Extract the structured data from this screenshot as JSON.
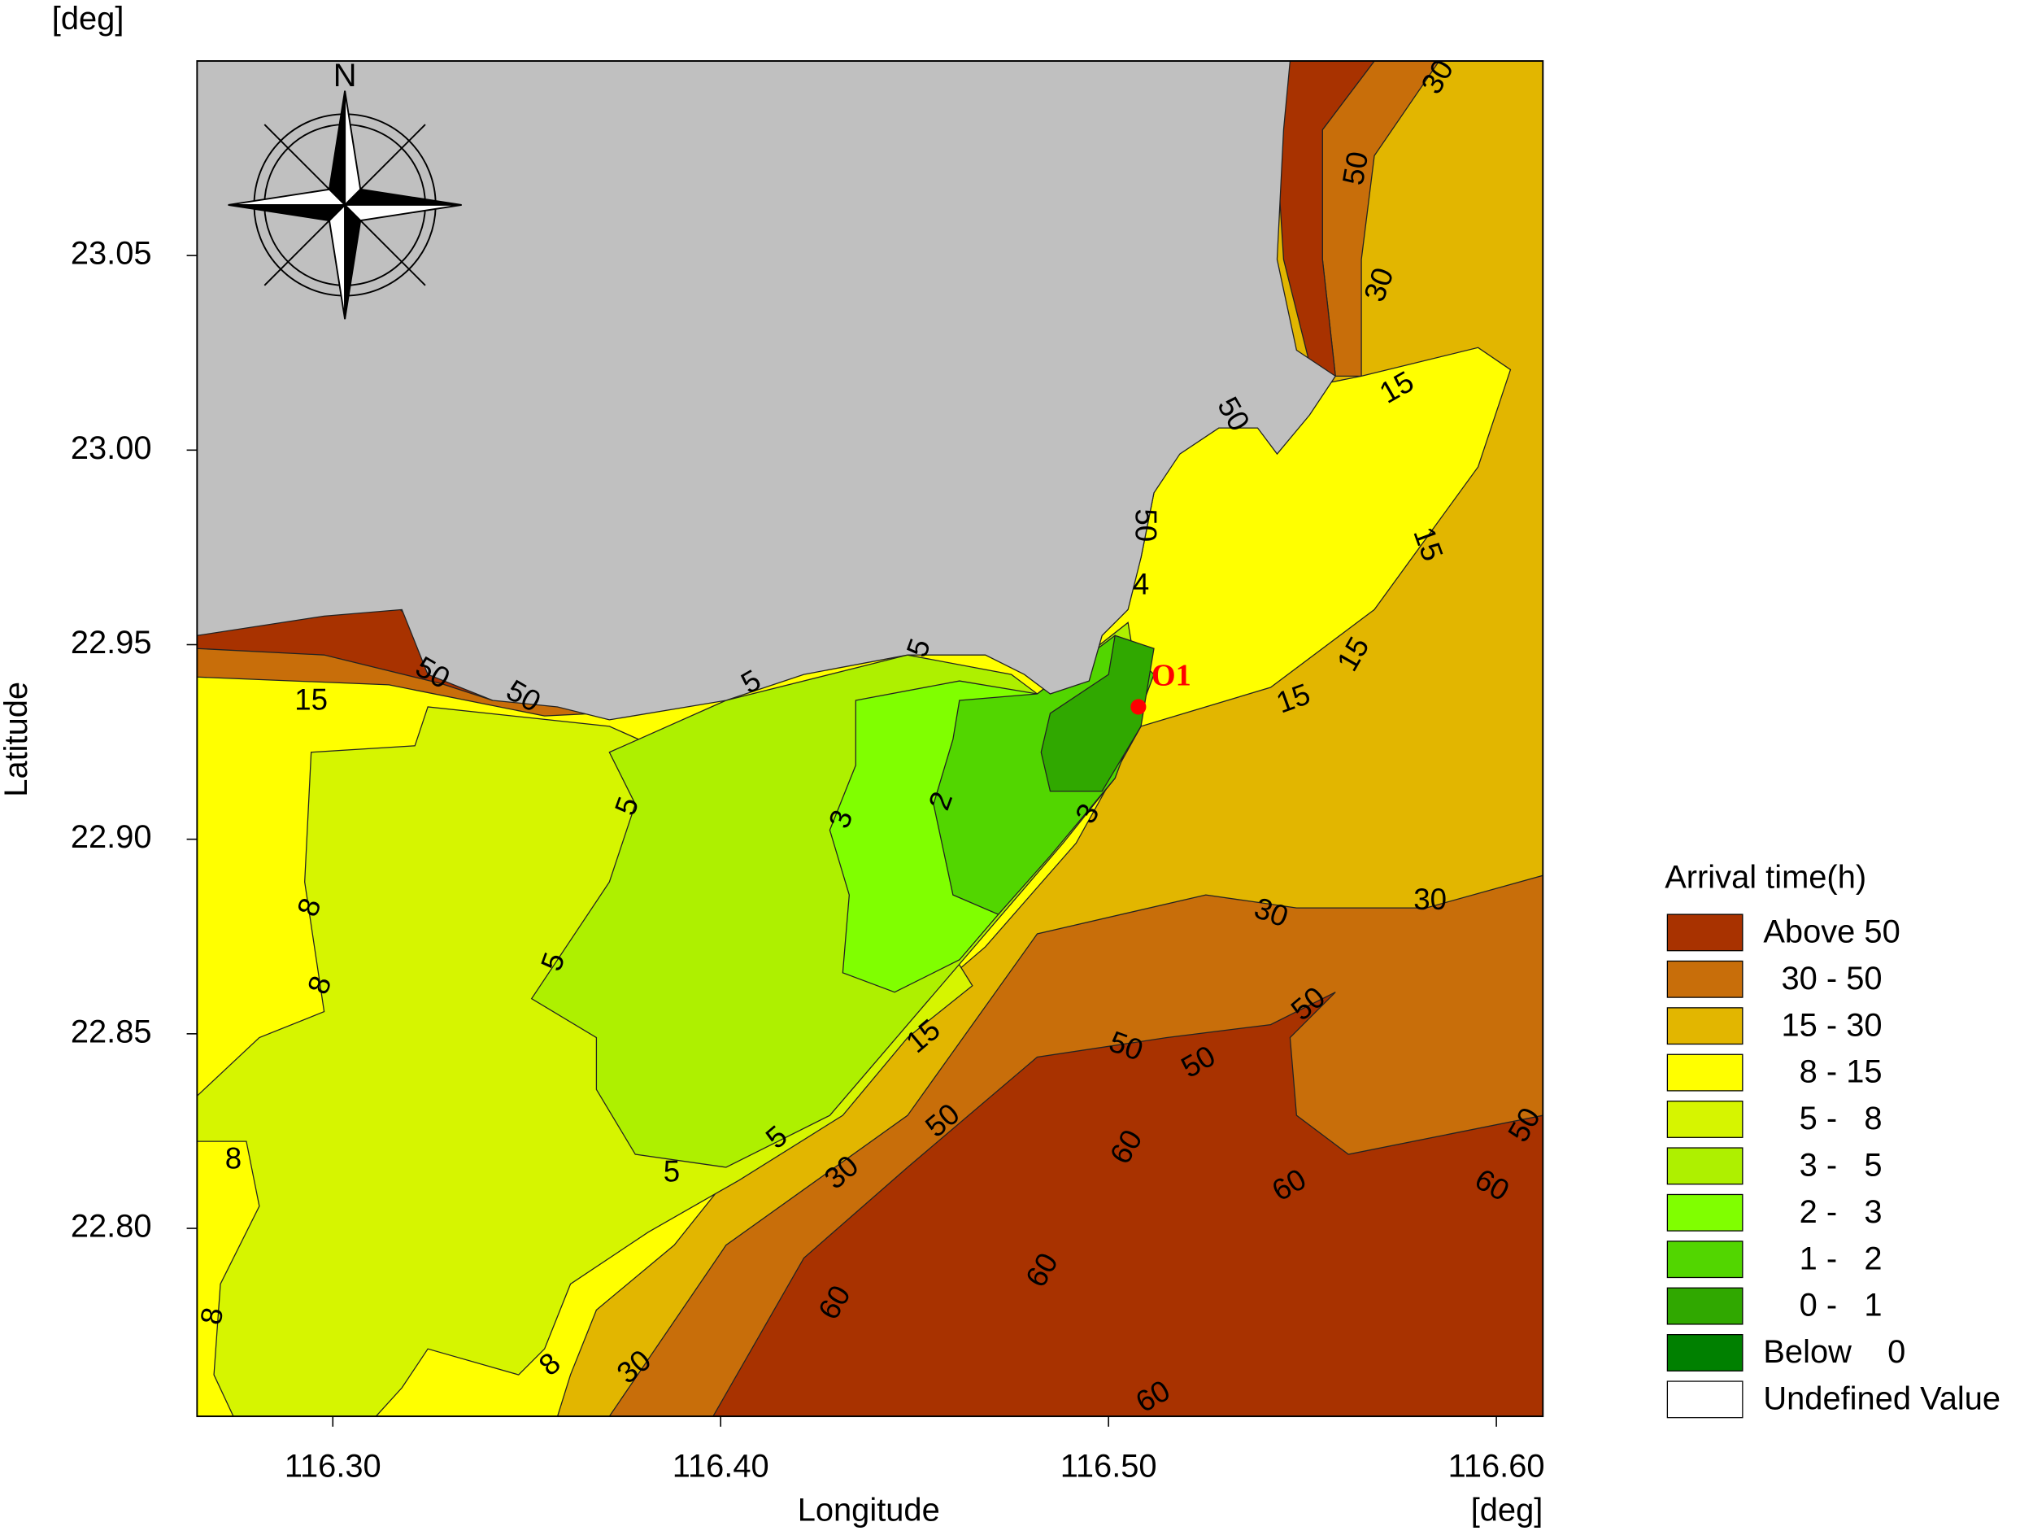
{
  "map": {
    "y_unit": "[deg]",
    "x_unit": "[deg]",
    "y_label": "Latitude",
    "x_label": "Longitude",
    "xlim": [
      116.265,
      116.612
    ],
    "ylim": [
      22.7517,
      23.1
    ],
    "xticks": [
      {
        "value": 116.3,
        "label": "116.30"
      },
      {
        "value": 116.4,
        "label": "116.40"
      },
      {
        "value": 116.5,
        "label": "116.50"
      },
      {
        "value": 116.6,
        "label": "116.60"
      }
    ],
    "yticks": [
      {
        "value": 22.8,
        "label": "22.80"
      },
      {
        "value": 22.85,
        "label": "22.85"
      },
      {
        "value": 22.9,
        "label": "22.90"
      },
      {
        "value": 22.95,
        "label": "22.95"
      },
      {
        "value": 23.0,
        "label": "23.00"
      },
      {
        "value": 23.05,
        "label": "23.05"
      }
    ],
    "compass_label": "N",
    "point_label": "O1",
    "contour_labels": [
      "50",
      "30",
      "30",
      "15",
      "50",
      "15",
      "50",
      "4",
      "15",
      "15",
      "30",
      "30",
      "50",
      "50",
      "50",
      "50",
      "60",
      "60",
      "60",
      "60",
      "60",
      "60",
      "50",
      "30",
      "30",
      "15",
      "5",
      "5",
      "2",
      "3",
      "5",
      "5",
      "5",
      "5",
      "8",
      "8",
      "8",
      "8",
      "8",
      "15",
      "50",
      "50",
      "3"
    ],
    "legend": {
      "title": "Arrival time(h)",
      "items": [
        {
          "label": "Above 50",
          "color": "#a83200"
        },
        {
          "label": "  30 - 50",
          "color": "#c86e0a"
        },
        {
          "label": "  15 - 30",
          "color": "#e2b600"
        },
        {
          "label": "    8 - 15",
          "color": "#ffff00"
        },
        {
          "label": "    5 -   8",
          "color": "#d6f500"
        },
        {
          "label": "    3 -   5",
          "color": "#aef000"
        },
        {
          "label": "    2 -   3",
          "color": "#80ff00"
        },
        {
          "label": "    1 -   2",
          "color": "#52d600"
        },
        {
          "label": "    0 -   1",
          "color": "#30a800"
        },
        {
          "label": "Below    0",
          "color": "#008000"
        },
        {
          "label": "Undefined Value",
          "color": "#ffffff"
        }
      ]
    }
  }
}
